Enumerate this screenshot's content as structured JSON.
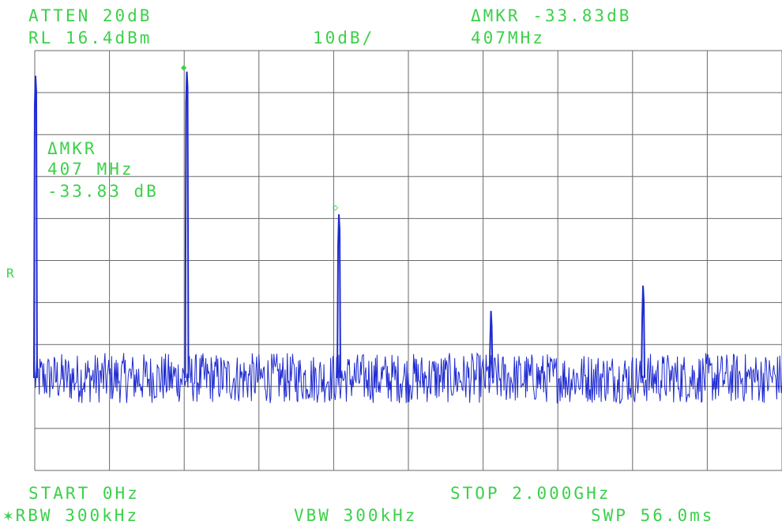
{
  "header": {
    "atten": "ATTEN 20dB",
    "delta_mkr_top": "ΔMKR -33.83dB",
    "ref_level": "RL 16.4dBm",
    "scale": "10dB/",
    "delta_mkr_freq_top": "407MHz"
  },
  "marker_readout": {
    "label": "ΔMKR",
    "freq": "407 MHz",
    "level": "-33.83 dB"
  },
  "side_label": "R",
  "marker_symbols": {
    "ref": "◆",
    "delta": "◇"
  },
  "footer": {
    "start": "START 0Hz",
    "stop": "STOP 2.000GHz",
    "rbw": "✶RBW 300kHz",
    "vbw": "VBW 300kHz",
    "sweep": "SWP 56.0ms"
  },
  "colors": {
    "graticule": "#6a6a6a",
    "trace": "#1f2bd0",
    "text": "#3cd04a"
  },
  "chart_data": {
    "type": "line",
    "x_unit": "MHz",
    "y_unit": "dB below ref (10 dB/div)",
    "xlim": [
      0,
      2000
    ],
    "ylim": [
      -100,
      0
    ],
    "grid": true,
    "divisions_x": 10,
    "divisions_y": 10,
    "noise_floor": -78,
    "noise_spread": 6,
    "peaks": [
      {
        "x": 2,
        "y": -6
      },
      {
        "x": 407,
        "y": -5
      },
      {
        "x": 814,
        "y": -39
      },
      {
        "x": 1221,
        "y": -62
      },
      {
        "x": 1628,
        "y": -56
      }
    ]
  }
}
